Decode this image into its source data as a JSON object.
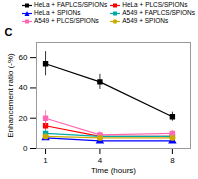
{
  "chart_data": {
    "type": "line",
    "xlabel": "Time (hours)",
    "ylabel": "Enhancement ratio (-%)",
    "annotations": [
      "C"
    ],
    "x": [
      1,
      4,
      8
    ],
    "series": [
      {
        "name": "HeLa + FAPLCS/SPIONs",
        "color": "#000000",
        "marker": "square",
        "line_style": "solid",
        "values": [
          56,
          44,
          21
        ],
        "errors": [
          8,
          5,
          3
        ]
      },
      {
        "name": "HeLa + PLCS/SPIONs",
        "color": "#ff0000",
        "marker": "square",
        "line_style": "solid",
        "values": [
          15,
          8,
          8
        ],
        "errors": [
          3,
          2,
          2
        ]
      },
      {
        "name": "HeLa + SPIONs",
        "color": "#0000ff",
        "marker": "triangle",
        "line_style": "solid",
        "values": [
          7,
          5,
          5
        ],
        "errors": [
          1.5,
          1,
          1
        ]
      },
      {
        "name": "A549 + FAPLCS/SPIONs",
        "color": "#00aaaa",
        "marker": "square",
        "line_style": "solid",
        "values": [
          10,
          8,
          8
        ],
        "errors": [
          2,
          1.5,
          1.5
        ]
      },
      {
        "name": "A549 + PLCS/SPIONs",
        "color": "#ff69b4",
        "marker": "square",
        "line_style": "solid",
        "values": [
          20,
          9,
          10
        ],
        "errors": [
          5,
          2,
          2
        ]
      },
      {
        "name": "A549 + SPIONs",
        "color": "#ccaa00",
        "marker": "circle",
        "line_style": "solid",
        "values": [
          8,
          7,
          7
        ],
        "errors": [
          1.5,
          1.5,
          1.5
        ]
      }
    ],
    "xlim": [
      0.5,
      9
    ],
    "ylim": [
      0,
      70
    ],
    "xticks": [
      1,
      4,
      8
    ],
    "yticks": [
      0,
      20,
      40,
      60
    ],
    "grid": false,
    "legend": "upper right"
  }
}
